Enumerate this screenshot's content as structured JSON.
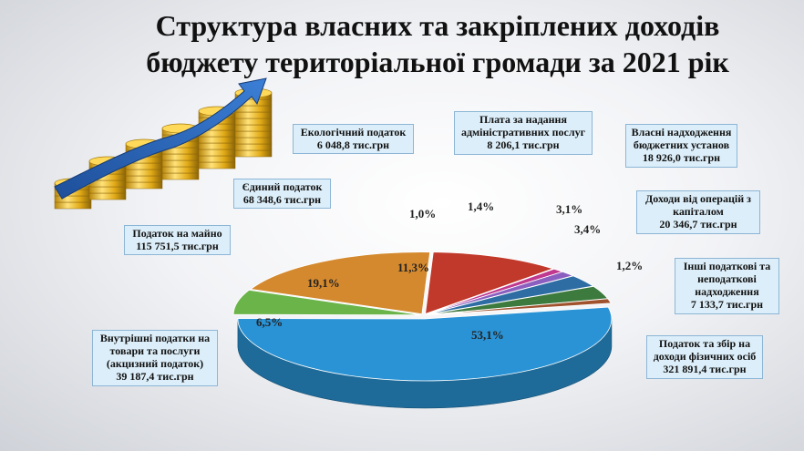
{
  "title": {
    "line1": "Структура власних та закріплених доходів",
    "line2": "бюджету територіальної громади за 2021 рік"
  },
  "colors": {
    "pit": "#2a93d5",
    "excise": "#6ab44a",
    "property": "#d4892e",
    "single_tax": "#c0392b",
    "eco_tax": "#c0398f",
    "admin_fees": "#8b5fbf",
    "budget_inst": "#2e6da4",
    "capital_ops": "#3d7a3d",
    "other": "#a0522d"
  },
  "chart_data": {
    "type": "pie",
    "style": "3d-exploded",
    "title": "Структура власних та закріплених доходів бюджету територіальної громади за 2021 рік",
    "unit": "тис.грн",
    "slices": [
      {
        "label": "Податок та збір на доходи фізичних осіб",
        "amount": "321 891,4 тис.грн",
        "value": 321891.4,
        "percent_label": "53,1%",
        "color_key": "pit"
      },
      {
        "label": "Внутрішні податки на товари та послуги (акцизний податок)",
        "amount": "39 187,4 тис.грн",
        "value": 39187.4,
        "percent_label": "6,5%",
        "color_key": "excise"
      },
      {
        "label": "Податок на майно",
        "amount": "115 751,5 тис.грн",
        "value": 115751.5,
        "percent_label": "19,1%",
        "color_key": "property"
      },
      {
        "label": "Єдиний податок",
        "amount": "68 348,6 тис.грн",
        "value": 68348.6,
        "percent_label": "11,3%",
        "color_key": "single_tax"
      },
      {
        "label": "Екологічний податок",
        "amount": "6 048,8 тис.грн",
        "value": 6048.8,
        "percent_label": "1,0%",
        "color_key": "eco_tax"
      },
      {
        "label": "Плата за надання адміністративних послуг",
        "amount": "8 206,1 тис.грн",
        "value": 8206.1,
        "percent_label": "1,4%",
        "color_key": "admin_fees"
      },
      {
        "label": "Власні надходження бюджетних установ",
        "amount": "18 926,0 тис.грн",
        "value": 18926.0,
        "percent_label": "3,1%",
        "color_key": "budget_inst"
      },
      {
        "label": "Доходи від операцій з капіталом",
        "amount": "20 346,7 тис.грн",
        "value": 20346.7,
        "percent_label": "3,4%",
        "color_key": "capital_ops"
      },
      {
        "label": "Інші податкові та неподаткові надходження",
        "amount": "7 133,7 тис.грн",
        "value": 7133.7,
        "percent_label": "1,2%",
        "color_key": "other"
      }
    ]
  },
  "callouts": {
    "pit": "Податок та збір на\nдоходи фізичних осіб\n321 891,4 тис.грн",
    "excise": "Внутрішні податки на\nтовари та послуги\n(акцизний податок)\n39 187,4 тис.грн",
    "property": "Податок на майно\n115 751,5 тис.грн",
    "single_tax": "Єдиний податок\n68 348,6 тис.грн",
    "eco_tax": "Екологічний податок\n6 048,8 тис.грн",
    "admin_fees": "Плата за надання\nадміністративних послуг\n8 206,1 тис.грн",
    "budget_inst": "Власні надходження\nбюджетних установ\n18 926,0 тис.грн",
    "capital_ops": "Доходи від операцій з\nкапіталом\n20 346,7 тис.грн",
    "other": "Інші податкові та\nнеподаткові\nнадходження\n7 133,7 тис.грн"
  },
  "percent_labels": {
    "pit": "53,1%",
    "excise": "6,5%",
    "property": "19,1%",
    "single_tax": "11,3%",
    "eco_tax": "1,0%",
    "admin_fees": "1,4%",
    "budget_inst": "3,1%",
    "capital_ops": "3,4%",
    "other": "1,2%"
  },
  "decoration": {
    "illustration": "gold-coin-stacks-with-rising-arrow"
  }
}
